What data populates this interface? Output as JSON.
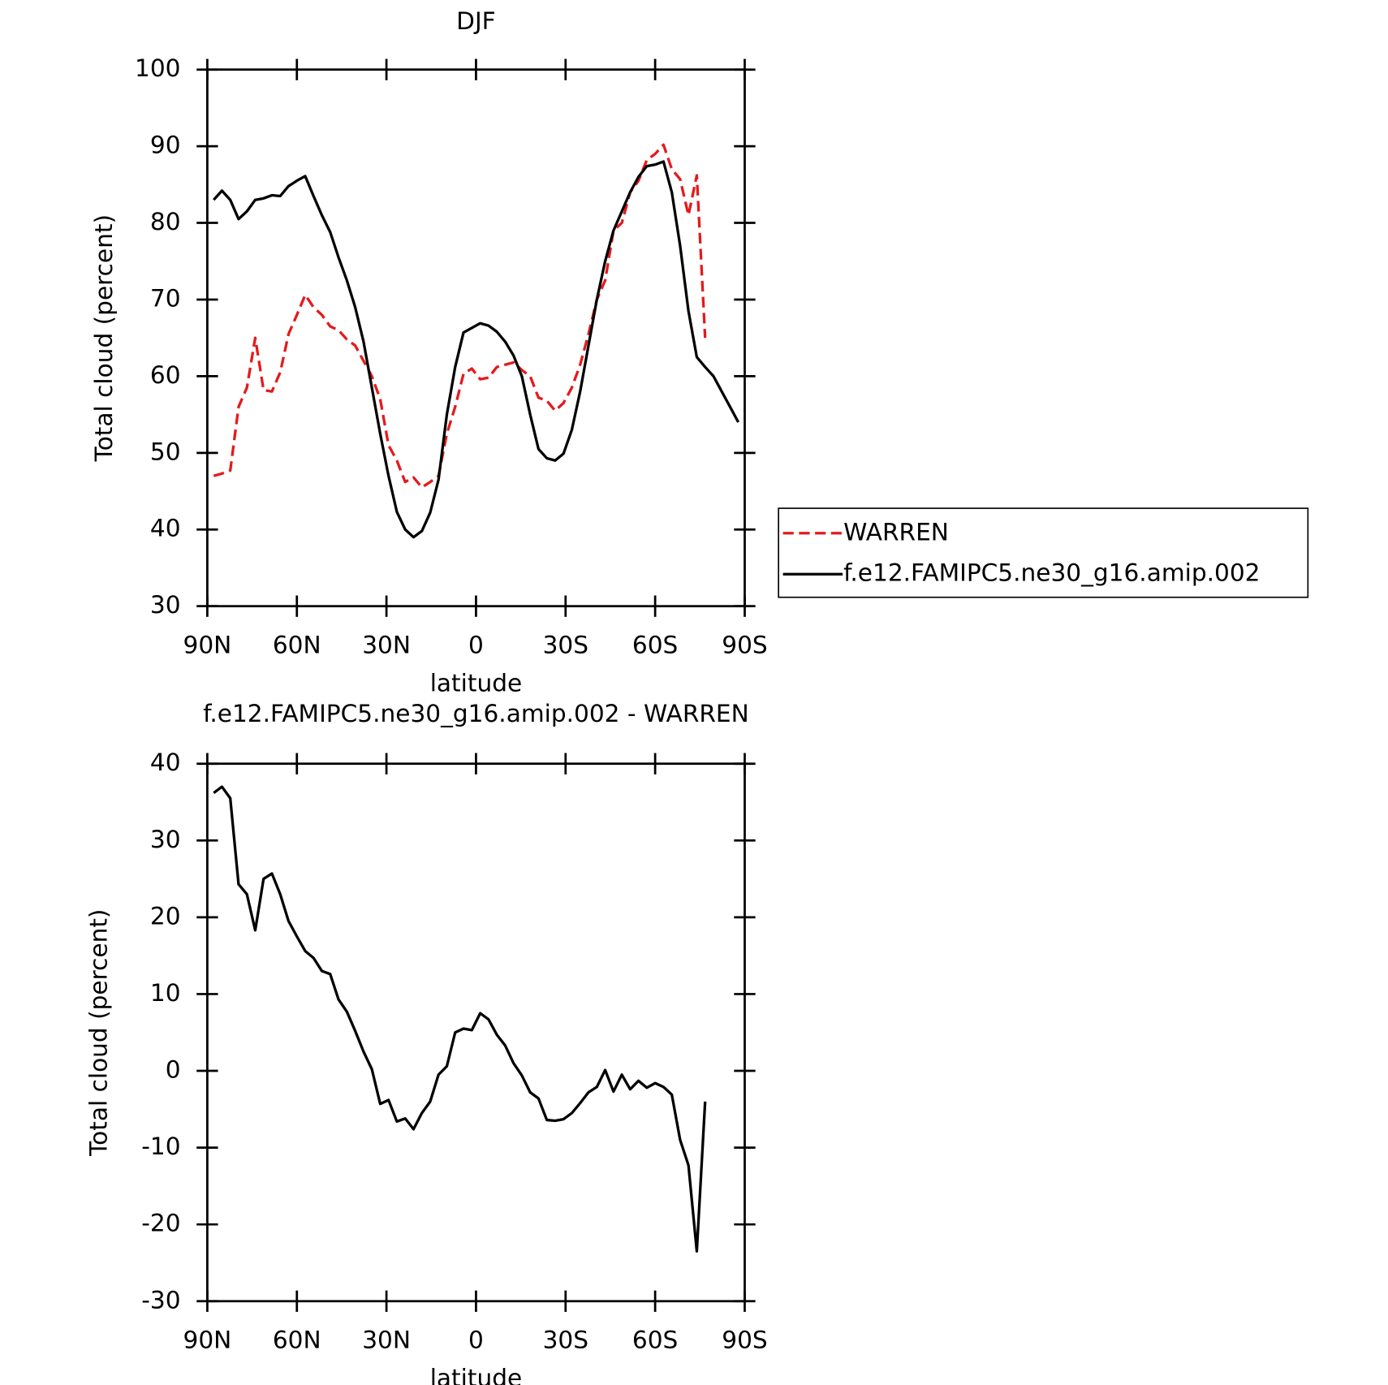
{
  "chart_data": [
    {
      "type": "line",
      "title": "DJF",
      "xlabel": "latitude",
      "ylabel": "Total cloud (percent)",
      "x": [
        87.86,
        85.1,
        82.31,
        79.53,
        76.74,
        73.95,
        71.16,
        68.37,
        65.58,
        62.79,
        60,
        57.21,
        54.42,
        51.63,
        48.84,
        46.05,
        43.26,
        40.47,
        37.67,
        34.88,
        32.09,
        29.3,
        26.51,
        23.72,
        20.93,
        18.14,
        15.35,
        12.56,
        9.77,
        6.98,
        4.19,
        1.4,
        -1.4,
        -4.19,
        -6.98,
        -9.77,
        -12.56,
        -15.35,
        -18.14,
        -20.93,
        -23.72,
        -26.51,
        -29.3,
        -32.09,
        -34.88,
        -37.67,
        -40.47,
        -43.26,
        -46.05,
        -48.84,
        -51.63,
        -54.42,
        -57.21,
        -60,
        -62.79,
        -65.58,
        -68.37,
        -71.16,
        -73.95,
        -76.74,
        -79.53,
        -82.31,
        -85.1,
        -87.86
      ],
      "series": [
        {
          "name": "WARREN",
          "color": "#e41a1c",
          "style": "dashed",
          "values": [
            47,
            47.3,
            47.7,
            56,
            58.5,
            65,
            58.2,
            58,
            60.5,
            65.5,
            68,
            70.6,
            69,
            68,
            66.5,
            66,
            64.8,
            64,
            62,
            60,
            57,
            51,
            49,
            46.2,
            46.8,
            45.5,
            46.2,
            47,
            52.5,
            56,
            60.3,
            61,
            59.6,
            59.8,
            61.2,
            61.5,
            61.8,
            60.8,
            60,
            57.2,
            56.8,
            55.5,
            56.5,
            58.5,
            61.5,
            65.5,
            70,
            72.5,
            79,
            80,
            84,
            85.5,
            88.2,
            89,
            90.2,
            87,
            85.7,
            81,
            86.2,
            65,
            null,
            null,
            null,
            null
          ]
        },
        {
          "name": "f.e12.FAMIPC5.ne30_g16.amip.002",
          "color": "#000000",
          "style": "solid",
          "values": [
            83,
            84.2,
            83,
            80.5,
            81.5,
            83,
            83.2,
            83.6,
            83.5,
            84.8,
            85.5,
            86.1,
            83.5,
            81,
            78.8,
            75.5,
            72.5,
            69,
            64.5,
            58.5,
            52.5,
            47,
            42.3,
            40,
            39,
            39.8,
            42.2,
            46.5,
            55,
            61.2,
            65.7,
            66.3,
            66.9,
            66.6,
            65.8,
            64.5,
            62.7,
            60,
            55,
            50.5,
            49.3,
            49,
            49.9,
            53,
            58,
            64,
            70,
            75,
            79,
            81.5,
            84,
            86,
            87.4,
            87.6,
            88,
            84,
            77,
            68.5,
            62.5,
            61.2,
            60,
            58,
            56,
            54
          ]
        }
      ],
      "xlim": [
        90,
        -90
      ],
      "xticks": [
        {
          "value": 90,
          "label": "90N"
        },
        {
          "value": 60,
          "label": "60N"
        },
        {
          "value": 30,
          "label": "30N"
        },
        0,
        {
          "value": -30,
          "label": "30S"
        },
        {
          "value": -60,
          "label": "60S"
        },
        {
          "value": -90,
          "label": "90S"
        }
      ],
      "ylim": [
        30,
        100
      ],
      "yticks": [
        30,
        40,
        50,
        60,
        70,
        80,
        90,
        100
      ],
      "legend": "right"
    },
    {
      "type": "line",
      "title": "f.e12.FAMIPC5.ne30_g16.amip.002 - WARREN",
      "xlabel": "latitude",
      "ylabel": "Total cloud (percent)",
      "x": [
        87.86,
        85.1,
        82.31,
        79.53,
        76.74,
        73.95,
        71.16,
        68.37,
        65.58,
        62.79,
        60,
        57.21,
        54.42,
        51.63,
        48.84,
        46.05,
        43.26,
        40.47,
        37.67,
        34.88,
        32.09,
        29.3,
        26.51,
        23.72,
        20.93,
        18.14,
        15.35,
        12.56,
        9.77,
        6.98,
        4.19,
        1.4,
        -1.4,
        -4.19,
        -6.98,
        -9.77,
        -12.56,
        -15.35,
        -18.14,
        -20.93,
        -23.72,
        -26.51,
        -29.3,
        -32.09,
        -34.88,
        -37.67,
        -40.47,
        -43.26,
        -46.05,
        -48.84,
        -51.63,
        -54.42,
        -57.21,
        -60,
        -62.79,
        -65.58,
        -68.37,
        -71.16,
        -73.95,
        -76.74,
        -79.53,
        -82.31,
        -85.1,
        -87.86
      ],
      "series": [
        {
          "color": "#000000",
          "style": "solid",
          "values": [
            36.2,
            37,
            35.5,
            24.3,
            23,
            18.3,
            25,
            25.7,
            23,
            19.5,
            17.5,
            15.6,
            14.7,
            13,
            12.6,
            9.3,
            7.7,
            5.2,
            2.5,
            0.2,
            -4.3,
            -3.8,
            -6.6,
            -6.2,
            -7.6,
            -5.5,
            -4,
            -0.5,
            0.6,
            5,
            5.5,
            5.3,
            7.5,
            6.7,
            4.7,
            3.3,
            1,
            -0.6,
            -2.8,
            -3.6,
            -6.4,
            -6.5,
            -6.3,
            -5.5,
            -4.2,
            -2.8,
            -2.1,
            0.1,
            -2.7,
            -0.5,
            -2.4,
            -1.3,
            -2.2,
            -1.6,
            -2.1,
            -3.1,
            -9,
            -12.3,
            -23.5,
            -4,
            null,
            null,
            null,
            null
          ]
        }
      ],
      "xlim": [
        90,
        -90
      ],
      "xticks": [
        {
          "value": 90,
          "label": "90N"
        },
        {
          "value": 60,
          "label": "60N"
        },
        {
          "value": 30,
          "label": "30N"
        },
        0,
        {
          "value": -30,
          "label": "30S"
        },
        {
          "value": -60,
          "label": "60S"
        },
        {
          "value": -90,
          "label": "90S"
        }
      ],
      "ylim": [
        -30,
        40
      ],
      "yticks": [
        -30,
        -20,
        -10,
        0,
        10,
        20,
        30,
        40
      ]
    }
  ]
}
